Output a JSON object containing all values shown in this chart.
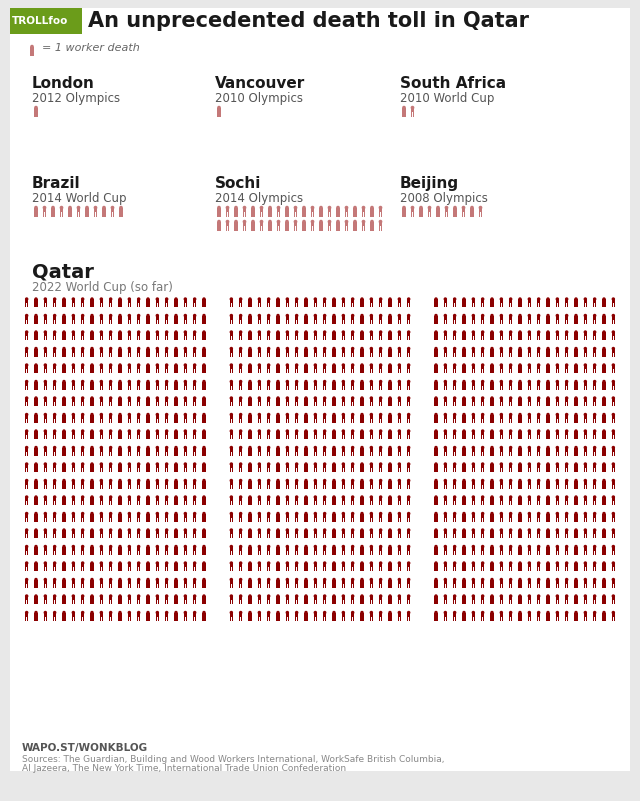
{
  "title": "An unprecedented death toll in Qatar",
  "legend_text": "= 1 worker death",
  "bg_color": "#e8e8e8",
  "panel_color": "#ffffff",
  "troll_bg": "#6b9c1a",
  "troll_text": "TROLLfoo",
  "sections": [
    {
      "name": "London",
      "subtitle": "2012 Olympics",
      "deaths": 1,
      "color": "#c47878",
      "col": 0,
      "row": 0
    },
    {
      "name": "Vancouver",
      "subtitle": "2010 Olympics",
      "deaths": 1,
      "color": "#c47878",
      "col": 1,
      "row": 0
    },
    {
      "name": "South Africa",
      "subtitle": "2010 World Cup",
      "deaths": 2,
      "color": "#c47878",
      "col": 2,
      "row": 0
    },
    {
      "name": "Brazil",
      "subtitle": "2014 World Cup",
      "deaths": 11,
      "color": "#c47878",
      "col": 0,
      "row": 1
    },
    {
      "name": "Sochi",
      "subtitle": "2014 Olympics",
      "deaths": 40,
      "color": "#c47878",
      "col": 1,
      "row": 1
    },
    {
      "name": "Beijing",
      "subtitle": "2008 Olympics",
      "deaths": 10,
      "color": "#c47878",
      "col": 2,
      "row": 1
    }
  ],
  "sochi_icons_per_row": 20,
  "brazil_icons_per_row": 11,
  "beijing_icons_per_row": 10,
  "qatar": {
    "name": "Qatar",
    "subtitle": "2022 World Cup (so far)",
    "deaths": 1200,
    "color": "#8b0000",
    "icons_per_row": 20,
    "num_cols": 3
  },
  "source_line1": "WAPO.ST/WONKBLOG",
  "source_line2": "Sources: The Guardian, Building and Wood Workers International, WorkSafe British Columbia,",
  "source_line3": "Al Jazeera, The New York Time, International Trade Union Confederation"
}
